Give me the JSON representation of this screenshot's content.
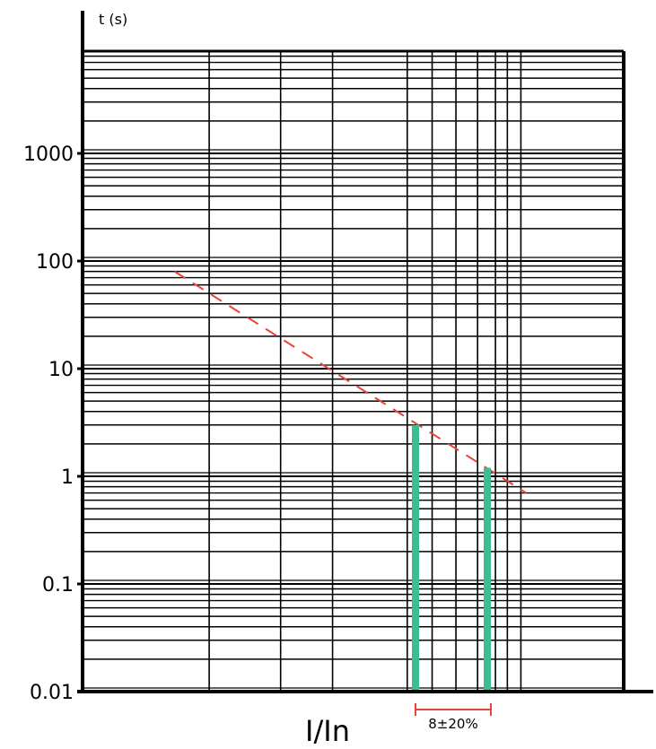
{
  "chart_data": {
    "type": "line",
    "title": "",
    "ylabel": "t (s)",
    "xlabel": "I/In",
    "yscale": "log",
    "ylim": [
      0.01,
      10000
    ],
    "y_tick_labels": [
      "0.01",
      "0.1",
      "1",
      "10",
      "100",
      "1000"
    ],
    "grid": true,
    "legend": "none",
    "x_ticks_labeled": false,
    "series": [
      {
        "style": "dashed",
        "color": "#e8443a",
        "points": [
          {
            "x_frac": 0.17,
            "y": 80
          },
          {
            "x_frac": 0.82,
            "y": 0.7
          }
        ]
      }
    ],
    "bars": [
      {
        "color": "#3dbd96",
        "y_top": 3
      },
      {
        "color": "#3dbd96",
        "y_top": 1.2
      }
    ],
    "annotations": [
      {
        "text": "8±20%",
        "color": "#e8443a"
      }
    ]
  }
}
